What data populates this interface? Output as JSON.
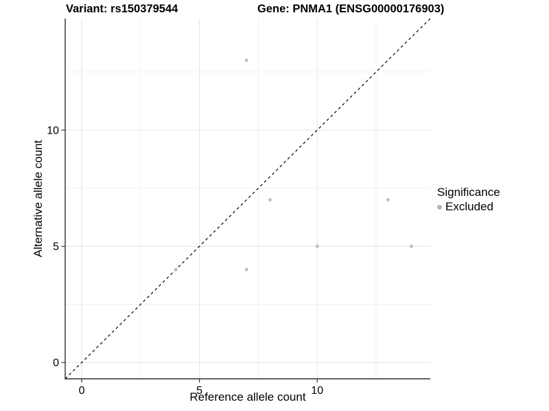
{
  "chart_data": {
    "type": "scatter",
    "title_left": "Variant: rs150379544",
    "title_right": "Gene: PNMA1 (ENSG00000176903)",
    "xlabel": "Reference allele count",
    "ylabel": "Alternative allele count",
    "xlim": [
      -0.7,
      14.8
    ],
    "ylim": [
      -0.7,
      14.8
    ],
    "x_ticks": [
      0,
      5,
      10
    ],
    "y_ticks": [
      0,
      5,
      10
    ],
    "minor_ticks": [
      2.5,
      7.5,
      12.5
    ],
    "grid": true,
    "identity_line": {
      "style": "dashed",
      "slope": 1,
      "intercept": 0,
      "color": "#111111"
    },
    "series": [
      {
        "name": "Excluded",
        "color": "#bfbfbf",
        "points": [
          {
            "x": 4,
            "y": 4
          },
          {
            "x": 7,
            "y": 4
          },
          {
            "x": 7,
            "y": 13
          },
          {
            "x": 8,
            "y": 7
          },
          {
            "x": 10,
            "y": 5
          },
          {
            "x": 13,
            "y": 7
          },
          {
            "x": 14,
            "y": 5
          }
        ]
      }
    ],
    "legend": {
      "title": "Significance",
      "position": "right",
      "items": [
        {
          "label": "Excluded",
          "color": "#b3b3b3"
        }
      ]
    },
    "colors": {
      "grid_major": "#e3e3e3",
      "grid_minor": "#f1f1f1",
      "axis": "#2f2f2f",
      "tick_text": "#000000",
      "background": "#ffffff"
    }
  }
}
